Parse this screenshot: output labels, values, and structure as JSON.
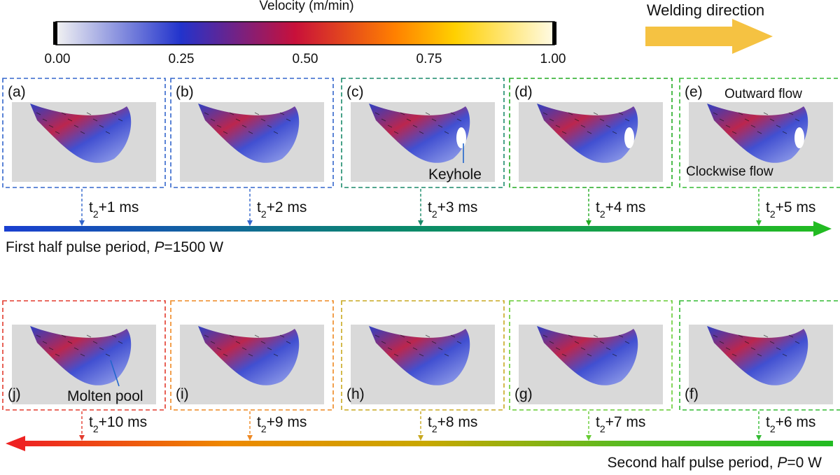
{
  "colorbar": {
    "title": "Velocity (m/min)",
    "ticks": [
      "0.00",
      "0.25",
      "0.50",
      "0.75",
      "1.00"
    ],
    "stops": [
      "#f2f2f2",
      "#2233cc",
      "#c8103a",
      "#ff8000",
      "#ffd000",
      "#fffbe6"
    ]
  },
  "welding_direction": {
    "label": "Welding direction",
    "color": "#f5c242"
  },
  "top_row": {
    "caption_text": "First half  pulse period, ",
    "caption_symbol": "P",
    "caption_value": "=1500 W",
    "arrow_colors": [
      "#1a3fd0",
      "#0a8a6a",
      "#22bb22"
    ],
    "panels": [
      {
        "label": "(a)",
        "time": "+1 ms",
        "color": "#3366cc"
      },
      {
        "label": "(b)",
        "time": "+2 ms",
        "color": "#3366cc"
      },
      {
        "label": "(c)",
        "time": "+3 ms",
        "color": "#1a8a6a"
      },
      {
        "label": "(d)",
        "time": "+4 ms",
        "color": "#22aa22"
      },
      {
        "label": "(e)",
        "time": "+5 ms",
        "color": "#33bb33"
      }
    ]
  },
  "bottom_row": {
    "caption_text": "Second half pulse period, ",
    "caption_symbol": "P",
    "caption_value": "=0 W",
    "arrow_colors": [
      "#ee2222",
      "#ee8800",
      "#c8a800",
      "#55bb22",
      "#22bb22"
    ],
    "panels": [
      {
        "label": "(j)",
        "time": "+10 ms",
        "color": "#e33b2e"
      },
      {
        "label": "(i)",
        "time": "+9 ms",
        "color": "#ee8822"
      },
      {
        "label": "(h)",
        "time": "+8 ms",
        "color": "#c8a820"
      },
      {
        "label": "(g)",
        "time": "+7 ms",
        "color": "#66cc33"
      },
      {
        "label": "(f)",
        "time": "+6 ms",
        "color": "#33bb33"
      }
    ]
  },
  "time_prefix": "t",
  "time_sub": "2",
  "annotations": {
    "keyhole": "Keyhole",
    "outward_flow": "Outward flow",
    "clockwise_flow": "Clockwise flow",
    "molten_pool": "Molten pool"
  }
}
